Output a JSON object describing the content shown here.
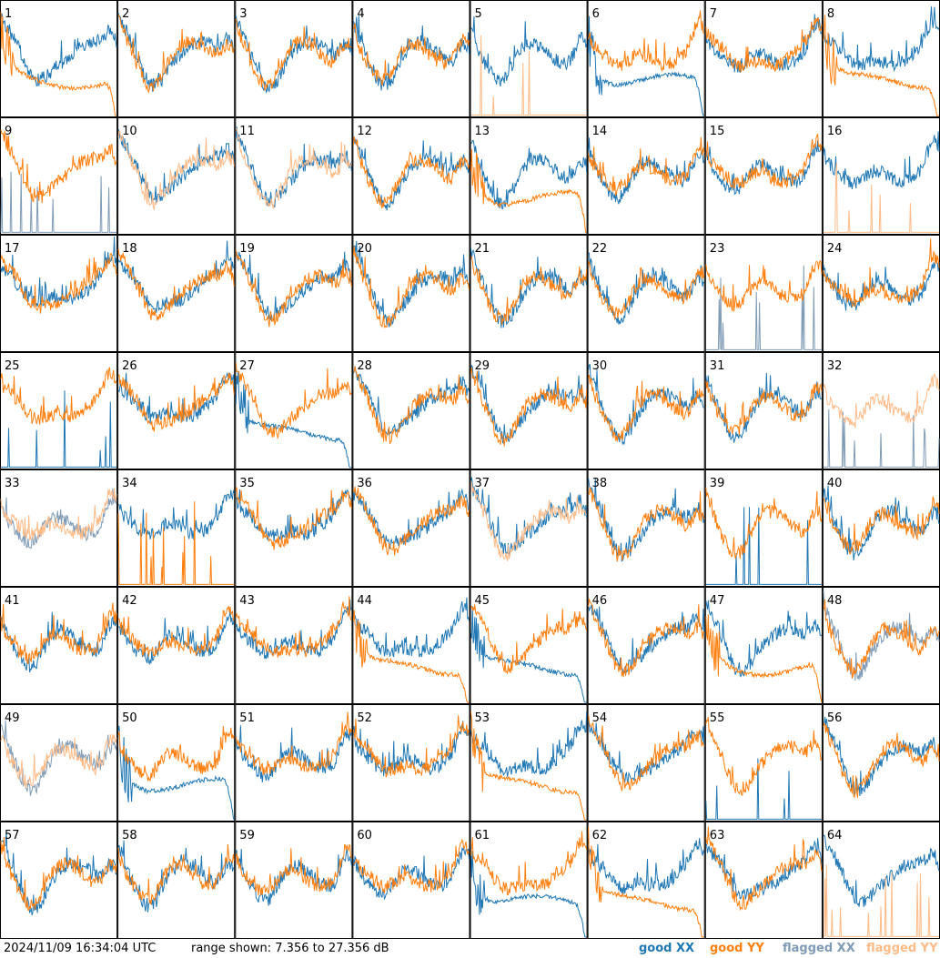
{
  "footer": {
    "timestamp": "2024/11/09 16:34:04 UTC",
    "range": "range shown: 7.356 to 27.356 dB"
  },
  "legend": [
    {
      "label": "good XX",
      "color": "#1f77b4"
    },
    {
      "label": "good YY",
      "color": "#ff7f0e"
    },
    {
      "label": "flagged XX",
      "color": "#7f9bb5"
    },
    {
      "label": "flagged YY",
      "color": "#ffbb88"
    }
  ],
  "chart_data": {
    "type": "line",
    "rows": 8,
    "cols": 8,
    "ylim": [
      7.356,
      27.356
    ],
    "yunit": "dB",
    "panel_labels": [
      "1",
      "2",
      "3",
      "4",
      "5",
      "6",
      "7",
      "8",
      "9",
      "10",
      "11",
      "12",
      "13",
      "14",
      "15",
      "16",
      "17",
      "18",
      "19",
      "20",
      "21",
      "22",
      "23",
      "24",
      "25",
      "26",
      "27",
      "28",
      "29",
      "30",
      "31",
      "32",
      "33",
      "34",
      "35",
      "36",
      "37",
      "38",
      "39",
      "40",
      "41",
      "42",
      "43",
      "44",
      "45",
      "46",
      "47",
      "48",
      "49",
      "50",
      "51",
      "52",
      "53",
      "54",
      "55",
      "56",
      "57",
      "58",
      "59",
      "60",
      "61",
      "62",
      "63",
      "64"
    ],
    "panels": [
      {
        "id": 1,
        "xx": "normal",
        "yy": "rolloff",
        "xx_flag": false,
        "yy_flag": false
      },
      {
        "id": 2,
        "xx": "normal",
        "yy": "normal",
        "xx_flag": false,
        "yy_flag": false
      },
      {
        "id": 3,
        "xx": "normal",
        "yy": "normal",
        "xx_flag": false,
        "yy_flag": false
      },
      {
        "id": 4,
        "xx": "normal",
        "yy": "normal",
        "xx_flag": false,
        "yy_flag": false
      },
      {
        "id": 5,
        "xx": "normal",
        "yy": "spikes",
        "xx_flag": false,
        "yy_flag": true
      },
      {
        "id": 6,
        "xx": "rolloff",
        "yy": "normal",
        "xx_flag": false,
        "yy_flag": false
      },
      {
        "id": 7,
        "xx": "normal",
        "yy": "normal",
        "xx_flag": false,
        "yy_flag": false
      },
      {
        "id": 8,
        "xx": "normal",
        "yy": "rolloff",
        "xx_flag": false,
        "yy_flag": false
      },
      {
        "id": 9,
        "xx": "spikes",
        "yy": "normal",
        "xx_flag": true,
        "yy_flag": false
      },
      {
        "id": 10,
        "xx": "normal",
        "yy": "normal",
        "xx_flag": false,
        "yy_flag": true
      },
      {
        "id": 11,
        "xx": "normal",
        "yy": "normal",
        "xx_flag": false,
        "yy_flag": true
      },
      {
        "id": 12,
        "xx": "normal",
        "yy": "normal",
        "xx_flag": false,
        "yy_flag": false
      },
      {
        "id": 13,
        "xx": "normal",
        "yy": "rolloff",
        "xx_flag": false,
        "yy_flag": false
      },
      {
        "id": 14,
        "xx": "normal",
        "yy": "normal",
        "xx_flag": false,
        "yy_flag": false
      },
      {
        "id": 15,
        "xx": "normal",
        "yy": "normal",
        "xx_flag": false,
        "yy_flag": false
      },
      {
        "id": 16,
        "xx": "normal",
        "yy": "spikes",
        "xx_flag": false,
        "yy_flag": true
      },
      {
        "id": 17,
        "xx": "normal",
        "yy": "normal",
        "xx_flag": false,
        "yy_flag": false
      },
      {
        "id": 18,
        "xx": "normal",
        "yy": "normal",
        "xx_flag": false,
        "yy_flag": false
      },
      {
        "id": 19,
        "xx": "normal",
        "yy": "normal",
        "xx_flag": false,
        "yy_flag": false
      },
      {
        "id": 20,
        "xx": "normal",
        "yy": "normal",
        "xx_flag": false,
        "yy_flag": false
      },
      {
        "id": 21,
        "xx": "normal",
        "yy": "normal",
        "xx_flag": false,
        "yy_flag": false
      },
      {
        "id": 22,
        "xx": "normal",
        "yy": "normal",
        "xx_flag": false,
        "yy_flag": false
      },
      {
        "id": 23,
        "xx": "spikes",
        "yy": "normal",
        "xx_flag": true,
        "yy_flag": false
      },
      {
        "id": 24,
        "xx": "normal",
        "yy": "normal",
        "xx_flag": false,
        "yy_flag": false
      },
      {
        "id": 25,
        "xx": "spikes",
        "yy": "normal",
        "xx_flag": false,
        "yy_flag": false
      },
      {
        "id": 26,
        "xx": "normal",
        "yy": "normal",
        "xx_flag": false,
        "yy_flag": false
      },
      {
        "id": 27,
        "xx": "rolloff",
        "yy": "normal",
        "xx_flag": false,
        "yy_flag": false
      },
      {
        "id": 28,
        "xx": "normal",
        "yy": "normal",
        "xx_flag": false,
        "yy_flag": false
      },
      {
        "id": 29,
        "xx": "normal",
        "yy": "normal",
        "xx_flag": false,
        "yy_flag": false
      },
      {
        "id": 30,
        "xx": "normal",
        "yy": "normal",
        "xx_flag": false,
        "yy_flag": false
      },
      {
        "id": 31,
        "xx": "normal",
        "yy": "normal",
        "xx_flag": false,
        "yy_flag": false
      },
      {
        "id": 32,
        "xx": "spikes",
        "yy": "normal",
        "xx_flag": true,
        "yy_flag": true
      },
      {
        "id": 33,
        "xx": "normal",
        "yy": "normal",
        "xx_flag": true,
        "yy_flag": true
      },
      {
        "id": 34,
        "xx": "normal",
        "yy": "spikes",
        "xx_flag": false,
        "yy_flag": false
      },
      {
        "id": 35,
        "xx": "normal",
        "yy": "normal",
        "xx_flag": false,
        "yy_flag": false
      },
      {
        "id": 36,
        "xx": "normal",
        "yy": "normal",
        "xx_flag": false,
        "yy_flag": false
      },
      {
        "id": 37,
        "xx": "normal",
        "yy": "normal",
        "xx_flag": false,
        "yy_flag": true
      },
      {
        "id": 38,
        "xx": "normal",
        "yy": "normal",
        "xx_flag": false,
        "yy_flag": false
      },
      {
        "id": 39,
        "xx": "spikes",
        "yy": "normal",
        "xx_flag": false,
        "yy_flag": false
      },
      {
        "id": 40,
        "xx": "normal",
        "yy": "normal",
        "xx_flag": false,
        "yy_flag": false
      },
      {
        "id": 41,
        "xx": "normal",
        "yy": "normal",
        "xx_flag": false,
        "yy_flag": false
      },
      {
        "id": 42,
        "xx": "normal",
        "yy": "normal",
        "xx_flag": false,
        "yy_flag": false
      },
      {
        "id": 43,
        "xx": "normal",
        "yy": "normal",
        "xx_flag": false,
        "yy_flag": false
      },
      {
        "id": 44,
        "xx": "normal",
        "yy": "rolloff",
        "xx_flag": false,
        "yy_flag": false
      },
      {
        "id": 45,
        "xx": "rolloff",
        "yy": "normal",
        "xx_flag": false,
        "yy_flag": false
      },
      {
        "id": 46,
        "xx": "normal",
        "yy": "normal",
        "xx_flag": false,
        "yy_flag": false
      },
      {
        "id": 47,
        "xx": "normal",
        "yy": "rolloff",
        "xx_flag": false,
        "yy_flag": false
      },
      {
        "id": 48,
        "xx": "normal",
        "yy": "normal",
        "xx_flag": true,
        "yy_flag": false
      },
      {
        "id": 49,
        "xx": "normal",
        "yy": "normal",
        "xx_flag": true,
        "yy_flag": true
      },
      {
        "id": 50,
        "xx": "rolloff",
        "yy": "normal",
        "xx_flag": false,
        "yy_flag": false
      },
      {
        "id": 51,
        "xx": "normal",
        "yy": "normal",
        "xx_flag": false,
        "yy_flag": false
      },
      {
        "id": 52,
        "xx": "normal",
        "yy": "normal",
        "xx_flag": false,
        "yy_flag": false
      },
      {
        "id": 53,
        "xx": "normal",
        "yy": "rolloff",
        "xx_flag": false,
        "yy_flag": false
      },
      {
        "id": 54,
        "xx": "normal",
        "yy": "normal",
        "xx_flag": false,
        "yy_flag": false
      },
      {
        "id": 55,
        "xx": "spikes",
        "yy": "normal",
        "xx_flag": false,
        "yy_flag": false
      },
      {
        "id": 56,
        "xx": "normal",
        "yy": "normal",
        "xx_flag": false,
        "yy_flag": false
      },
      {
        "id": 57,
        "xx": "normal",
        "yy": "normal",
        "xx_flag": false,
        "yy_flag": false
      },
      {
        "id": 58,
        "xx": "normal",
        "yy": "normal",
        "xx_flag": false,
        "yy_flag": false
      },
      {
        "id": 59,
        "xx": "normal",
        "yy": "normal",
        "xx_flag": false,
        "yy_flag": false
      },
      {
        "id": 60,
        "xx": "normal",
        "yy": "normal",
        "xx_flag": false,
        "yy_flag": false
      },
      {
        "id": 61,
        "xx": "rolloff",
        "yy": "normal",
        "xx_flag": false,
        "yy_flag": false
      },
      {
        "id": 62,
        "xx": "normal",
        "yy": "rolloff",
        "xx_flag": false,
        "yy_flag": false
      },
      {
        "id": 63,
        "xx": "normal",
        "yy": "normal",
        "xx_flag": false,
        "yy_flag": false
      },
      {
        "id": 64,
        "xx": "normal",
        "yy": "spikes",
        "xx_flag": false,
        "yy_flag": true
      }
    ]
  }
}
